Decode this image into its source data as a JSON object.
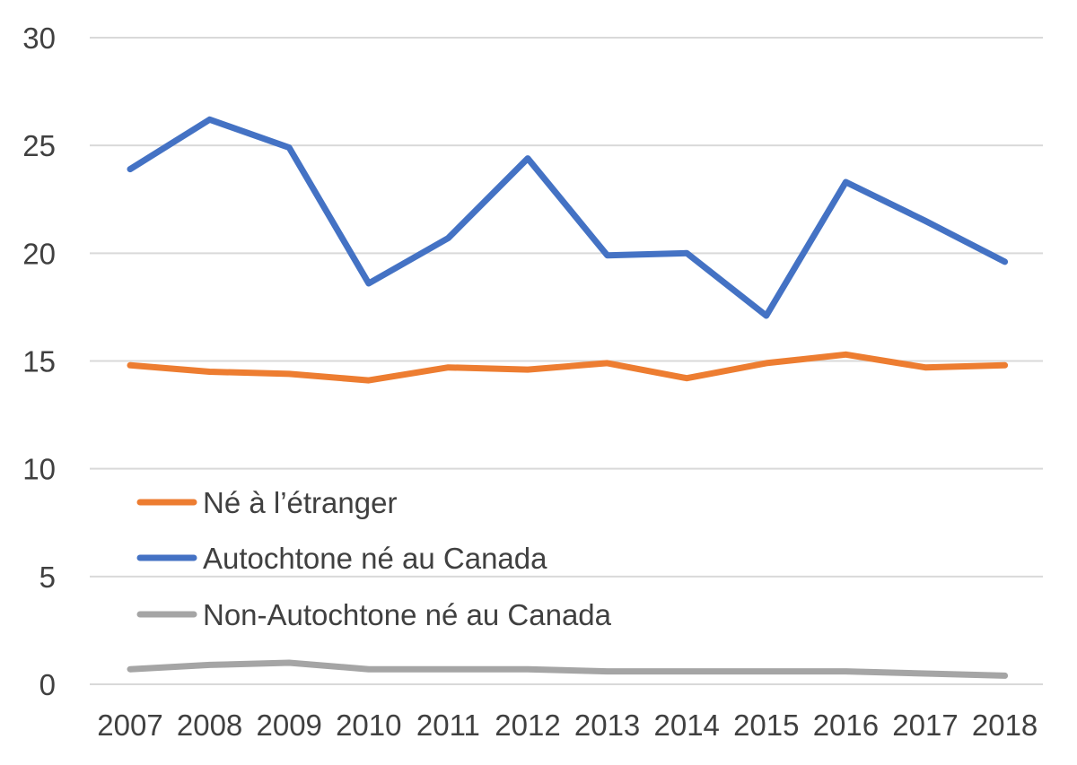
{
  "chart_data": {
    "type": "line",
    "title": "",
    "xlabel": "",
    "ylabel": "",
    "categories": [
      "2007",
      "2008",
      "2009",
      "2010",
      "2011",
      "2012",
      "2013",
      "2014",
      "2015",
      "2016",
      "2017",
      "2018"
    ],
    "ylim": [
      0,
      30
    ],
    "yticks": [
      0,
      5,
      10,
      15,
      20,
      25,
      30
    ],
    "grid": true,
    "legend_position": "lower-left",
    "series": [
      {
        "name": "Né à l’étranger",
        "color": "#ed7d31",
        "values": [
          14.8,
          14.5,
          14.4,
          14.1,
          14.7,
          14.6,
          14.9,
          14.2,
          14.9,
          15.3,
          14.7,
          14.8
        ]
      },
      {
        "name": "Autochtone né au Canada",
        "color": "#4472c4",
        "values": [
          23.9,
          26.2,
          24.9,
          18.6,
          20.7,
          24.4,
          19.9,
          20.0,
          17.1,
          23.3,
          21.5,
          19.6
        ]
      },
      {
        "name": "Non-Autochtone né au Canada",
        "color": "#a5a5a5",
        "values": [
          0.7,
          0.9,
          1.0,
          0.7,
          0.7,
          0.7,
          0.6,
          0.6,
          0.6,
          0.6,
          0.5,
          0.4
        ]
      }
    ]
  }
}
